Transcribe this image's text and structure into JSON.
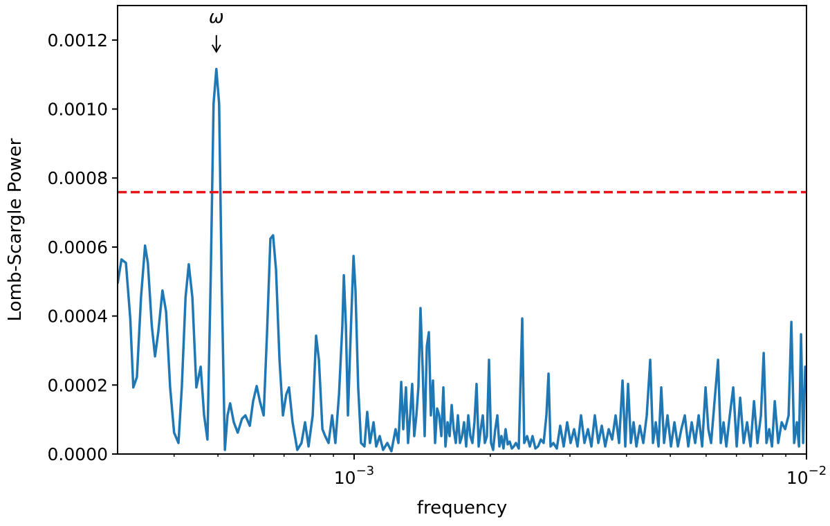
{
  "chart_data": {
    "type": "line",
    "xlabel": "frequency",
    "ylabel": "Lomb-Scargle Power",
    "xscale": "log",
    "xlim": [
      0.0003,
      0.01
    ],
    "ylim": [
      0,
      0.0013
    ],
    "xticks": [
      {
        "value": 0.001,
        "label": "10",
        "exponent": "−3"
      },
      {
        "value": 0.01,
        "label": "10",
        "exponent": "−2"
      }
    ],
    "xminorticks": [
      0.0004,
      0.0005,
      0.0006,
      0.0007,
      0.0008,
      0.0009,
      0.002,
      0.003,
      0.004,
      0.005,
      0.006,
      0.007,
      0.008,
      0.009
    ],
    "yticks": [
      {
        "value": 0,
        "label": "0.0000"
      },
      {
        "value": 0.0002,
        "label": "0.0002"
      },
      {
        "value": 0.0004,
        "label": "0.0004"
      },
      {
        "value": 0.0006,
        "label": "0.0006"
      },
      {
        "value": 0.0008,
        "label": "0.0008"
      },
      {
        "value": 0.001,
        "label": "0.0010"
      },
      {
        "value": 0.0012,
        "label": "0.0012"
      }
    ],
    "grid": false,
    "hlines": [
      {
        "value": 0.000759,
        "color": "#e8141a",
        "style": "dashed"
      }
    ],
    "annotations": [
      {
        "text": "ω",
        "x": 0.000496,
        "y": 0.001166
      }
    ],
    "series": [
      {
        "color": "#1f77b4",
        "x": [
          0.0003,
          0.000306,
          0.000313,
          0.00032,
          0.000325,
          0.000331,
          0.000338,
          0.000345,
          0.00035,
          0.000357,
          0.000363,
          0.000369,
          0.000377,
          0.000384,
          0.000392,
          0.0004,
          0.000409,
          0.000416,
          0.000424,
          0.000431,
          0.000439,
          0.000448,
          0.000458,
          0.000466,
          0.000474,
          0.000482,
          0.000489,
          0.000496,
          0.000503,
          0.00051,
          0.000518,
          0.000525,
          0.000532,
          0.000542,
          0.000553,
          0.000565,
          0.000575,
          0.000588,
          0.000598,
          0.000609,
          0.000619,
          0.000631,
          0.000642,
          0.000653,
          0.000662,
          0.000672,
          0.000684,
          0.000696,
          0.000708,
          0.000718,
          0.000731,
          0.000749,
          0.000765,
          0.000779,
          0.000793,
          0.00081,
          0.000824,
          0.000836,
          0.000851,
          0.000863,
          0.000878,
          0.000894,
          0.000909,
          0.000926,
          0.000942,
          0.000949,
          0.000959,
          0.000969,
          0.000983,
          0.000997,
          0.001007,
          0.001021,
          0.001036,
          0.001054,
          0.001069,
          0.001084,
          0.001104,
          0.001119,
          0.001139,
          0.001159,
          0.001184,
          0.001209,
          0.001235,
          0.001253,
          0.001271,
          0.001284,
          0.001302,
          0.001316,
          0.00133,
          0.001344,
          0.001358,
          0.001373,
          0.001387,
          0.001402,
          0.001417,
          0.001432,
          0.001448,
          0.001463,
          0.001478,
          0.001494,
          0.00151,
          0.001526,
          0.001542,
          0.001559,
          0.001575,
          0.001592,
          0.001609,
          0.001626,
          0.001643,
          0.00166,
          0.001678,
          0.001696,
          0.001714,
          0.001732,
          0.00175,
          0.001769,
          0.001788,
          0.001807,
          0.001826,
          0.001845,
          0.001865,
          0.001885,
          0.001905,
          0.001925,
          0.001945,
          0.001966,
          0.001987,
          0.002008,
          0.002029,
          0.002051,
          0.002073,
          0.002095,
          0.002117,
          0.002139,
          0.002162,
          0.002185,
          0.002208,
          0.002232,
          0.002255,
          0.002279,
          0.002312,
          0.002353,
          0.002377,
          0.002412,
          0.002446,
          0.00248,
          0.002516,
          0.002551,
          0.002587,
          0.002624,
          0.002661,
          0.00269,
          0.002718,
          0.002757,
          0.002806,
          0.002855,
          0.002906,
          0.002958,
          0.00301,
          0.003064,
          0.003118,
          0.003174,
          0.00323,
          0.003288,
          0.003346,
          0.003405,
          0.003466,
          0.003528,
          0.00359,
          0.003654,
          0.003719,
          0.003785,
          0.003852,
          0.003921,
          0.003976,
          0.004033,
          0.00409,
          0.004148,
          0.004207,
          0.004282,
          0.004358,
          0.004435,
          0.004514,
          0.004578,
          0.004643,
          0.004709,
          0.004775,
          0.004843,
          0.004929,
          0.005017,
          0.005106,
          0.005197,
          0.005289,
          0.005383,
          0.005479,
          0.005576,
          0.005675,
          0.005776,
          0.005879,
          0.005983,
          0.006068,
          0.006154,
          0.006263,
          0.006375,
          0.006465,
          0.006557,
          0.00665,
          0.006768,
          0.006888,
          0.00701,
          0.007135,
          0.007262,
          0.007391,
          0.007522,
          0.007656,
          0.007792,
          0.00793,
          0.008043,
          0.008157,
          0.008272,
          0.00839,
          0.008509,
          0.00866,
          0.008814,
          0.00897,
          0.00913,
          0.009259,
          0.009391,
          0.009524,
          0.009625,
          0.009727,
          0.00983,
          0.009935,
          0.01
        ],
        "values": [
          0.000494,
          0.000564,
          0.000554,
          0.000393,
          0.000193,
          0.000223,
          0.000454,
          0.000604,
          0.000554,
          0.000373,
          0.000283,
          0.000353,
          0.000474,
          0.000413,
          0.000193,
          6.2e-05,
          3.2e-05,
          0.000193,
          0.000454,
          0.00055,
          0.000454,
          0.000193,
          0.000253,
          0.000112,
          4.2e-05,
          0.000514,
          0.001016,
          0.001116,
          0.001016,
          0.000474,
          1.2e-05,
          0.000112,
          0.000147,
          9.2e-05,
          6.2e-05,
          0.000102,
          0.000112,
          8.2e-05,
          0.000153,
          0.000197,
          0.000153,
          0.000112,
          0.000353,
          0.000624,
          0.000634,
          0.000534,
          0.000273,
          0.000112,
          0.000173,
          0.000193,
          9.2e-05,
          1.2e-05,
          3.2e-05,
          9.2e-05,
          2.2e-05,
          0.000112,
          0.000343,
          0.000273,
          7.2e-05,
          5.2e-05,
          3.2e-05,
          0.000112,
          3.2e-05,
          0.000173,
          0.000373,
          0.000518,
          0.000373,
          0.000112,
          0.000353,
          0.000574,
          0.000474,
          0.000193,
          3.2e-05,
          2.2e-05,
          0.000122,
          3.2e-05,
          9.2e-05,
          2.2e-05,
          5.2e-05,
          1.2e-05,
          3.2e-05,
          8e-06,
          7.2e-05,
          3.2e-05,
          0.000209,
          7.2e-05,
          0.000193,
          3.2e-05,
          0.000112,
          0.000203,
          5.2e-05,
          0.000112,
          0.000193,
          0.000423,
          0.000253,
          5.2e-05,
          0.000313,
          0.000353,
          0.000112,
          0.000213,
          3.2e-05,
          0.000132,
          0.000112,
          5.2e-05,
          0.000193,
          2.2e-05,
          9.2e-05,
          5.2e-05,
          0.000142,
          7.2e-05,
          3.2e-05,
          0.000112,
          3.2e-05,
          5.2e-05,
          9.2e-05,
          2.2e-05,
          0.000112,
          5.2e-05,
          3.2e-05,
          9.2e-05,
          0.000203,
          2.2e-05,
          7.2e-05,
          0.000112,
          3.2e-05,
          5.2e-05,
          0.000273,
          3.2e-05,
          1.2e-05,
          7.2e-05,
          0.000112,
          2.2e-05,
          5.2e-05,
          1.6e-05,
          7.2e-05,
          2.8e-05,
          3.6e-05,
          1.6e-05,
          2.2e-05,
          3.2e-05,
          1.6e-05,
          0.000393,
          3.2e-05,
          5.2e-05,
          2.2e-05,
          5.2e-05,
          1.6e-05,
          2.2e-05,
          4.2e-05,
          3.2e-05,
          0.000112,
          0.000233,
          2.2e-05,
          3.2e-05,
          1.6e-05,
          8.2e-05,
          2.2e-05,
          9.2e-05,
          3.2e-05,
          7.2e-05,
          2.2e-05,
          0.000112,
          3.2e-05,
          7.2e-05,
          2.2e-05,
          0.000112,
          3.2e-05,
          8.2e-05,
          2.2e-05,
          7.2e-05,
          4.2e-05,
          0.000112,
          3.2e-05,
          0.000213,
          2.2e-05,
          0.000203,
          3.2e-05,
          9.2e-05,
          2.2e-05,
          8.2e-05,
          3.2e-05,
          0.000112,
          0.000273,
          3.2e-05,
          9.2e-05,
          2.2e-05,
          0.000193,
          3.2e-05,
          0.000112,
          2.2e-05,
          9.2e-05,
          2.2e-05,
          7.2e-05,
          0.000112,
          2.2e-05,
          9.2e-05,
          3.2e-05,
          0.000112,
          2.2e-05,
          0.000193,
          7.2e-05,
          3.2e-05,
          0.000153,
          0.000273,
          3.2e-05,
          9.2e-05,
          2.2e-05,
          0.000112,
          0.000193,
          2.2e-05,
          0.000163,
          3.2e-05,
          9.2e-05,
          2.2e-05,
          0.000153,
          3.2e-05,
          0.000112,
          0.000293,
          3.2e-05,
          7.2e-05,
          2.2e-05,
          0.000153,
          3.2e-05,
          9.2e-05,
          7.2e-05,
          0.000112,
          0.000383,
          3.2e-05,
          9.2e-05,
          2.2e-05,
          0.000347,
          3.2e-05,
          0.000253,
          0.000193
        ]
      }
    ]
  }
}
